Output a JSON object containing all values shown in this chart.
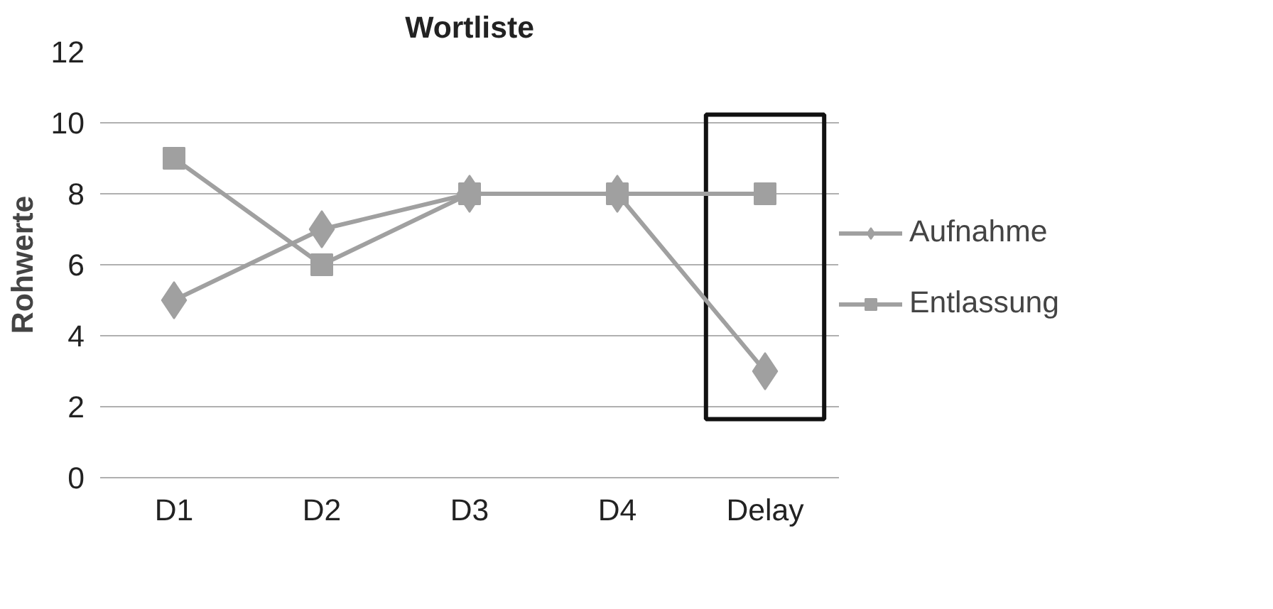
{
  "chart_data": {
    "type": "line",
    "title": "Wortliste",
    "ylabel": "Rohwerte",
    "categories": [
      "D1",
      "D2",
      "D3",
      "D4",
      "Delay"
    ],
    "series": [
      {
        "name": "Aufnahme",
        "color": "#a0a0a0",
        "marker": "diamond",
        "values": [
          5,
          7,
          8,
          8,
          3
        ]
      },
      {
        "name": "Entlassung",
        "color": "#a0a0a0",
        "marker": "square",
        "values": [
          9,
          6,
          8,
          8,
          8
        ]
      }
    ],
    "ylim": [
      0,
      12
    ],
    "yticks": [
      0,
      2,
      4,
      6,
      8,
      10,
      12
    ],
    "grid": "y",
    "legend": "right"
  }
}
